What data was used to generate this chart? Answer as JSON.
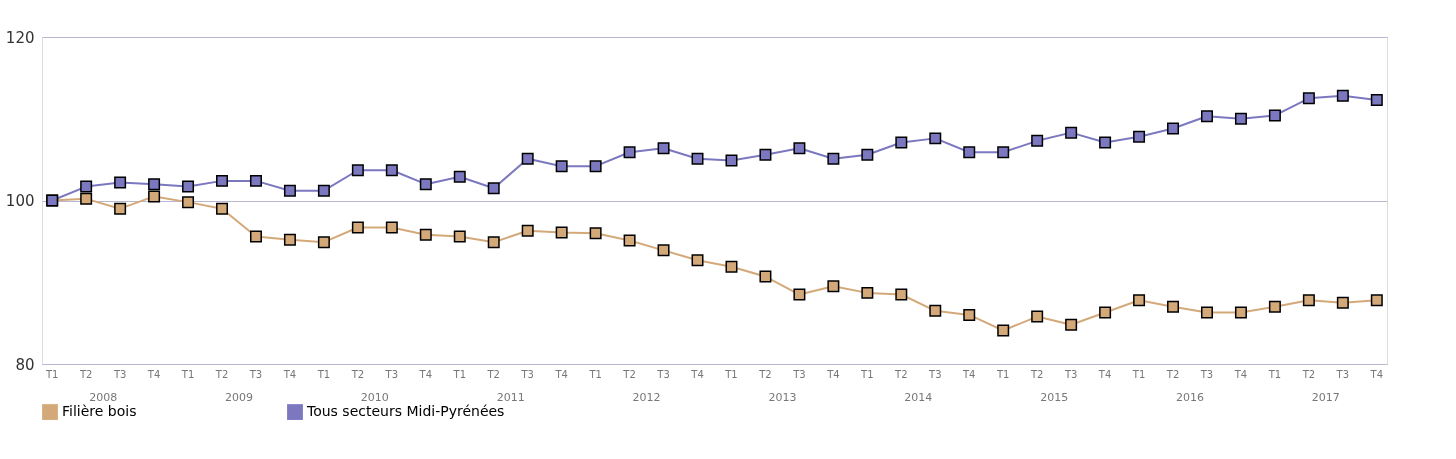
{
  "chart_data": {
    "type": "line",
    "categories": [
      "T1",
      "T2",
      "T3",
      "T4",
      "T1",
      "T2",
      "T3",
      "T4",
      "T1",
      "T2",
      "T3",
      "T4",
      "T1",
      "T2",
      "T3",
      "T4",
      "T1",
      "T2",
      "T3",
      "T4",
      "T1",
      "T2",
      "T3",
      "T4",
      "T1",
      "T2",
      "T3",
      "T4",
      "T1",
      "T2",
      "T3",
      "T4",
      "T1",
      "T2",
      "T3",
      "T4",
      "T1",
      "T2",
      "T3",
      "T4"
    ],
    "series": [
      {
        "name": "Filière bois",
        "color": "#d4a97a",
        "values": [
          100,
          100.2,
          99.0,
          100.5,
          99.8,
          99.0,
          95.6,
          95.2,
          94.9,
          96.7,
          96.7,
          95.8,
          95.6,
          94.9,
          96.3,
          96.1,
          96.0,
          95.1,
          93.9,
          92.7,
          91.9,
          90.7,
          88.5,
          89.5,
          88.7,
          88.5,
          86.5,
          86.0,
          84.1,
          85.8,
          84.8,
          86.3,
          87.8,
          87.0,
          86.3,
          86.3,
          87.0,
          87.8,
          87.5,
          87.8
        ]
      },
      {
        "name": "Tous secteurs Midi-Pyrénées",
        "color": "#7b78c0",
        "values": [
          100,
          101.7,
          102.2,
          102.0,
          101.7,
          102.4,
          102.4,
          101.2,
          101.2,
          103.7,
          103.7,
          102.0,
          102.9,
          101.5,
          105.1,
          104.2,
          104.2,
          105.9,
          106.4,
          105.1,
          104.9,
          105.6,
          106.4,
          105.1,
          105.6,
          107.1,
          107.6,
          105.9,
          105.9,
          107.3,
          108.3,
          107.1,
          107.8,
          108.8,
          110.3,
          110.0,
          110.4,
          112.5,
          112.8,
          112.3
        ]
      }
    ],
    "annotations": [
      "2008",
      "2009",
      "2010",
      "2011",
      "2012",
      "2013",
      "2014",
      "2015",
      "2016",
      "2017"
    ],
    "ylim": [
      80,
      120
    ],
    "yticks": [
      80,
      100,
      120
    ],
    "grid": "y",
    "legend": "bottom",
    "marker": "square",
    "line_style": "solid"
  }
}
